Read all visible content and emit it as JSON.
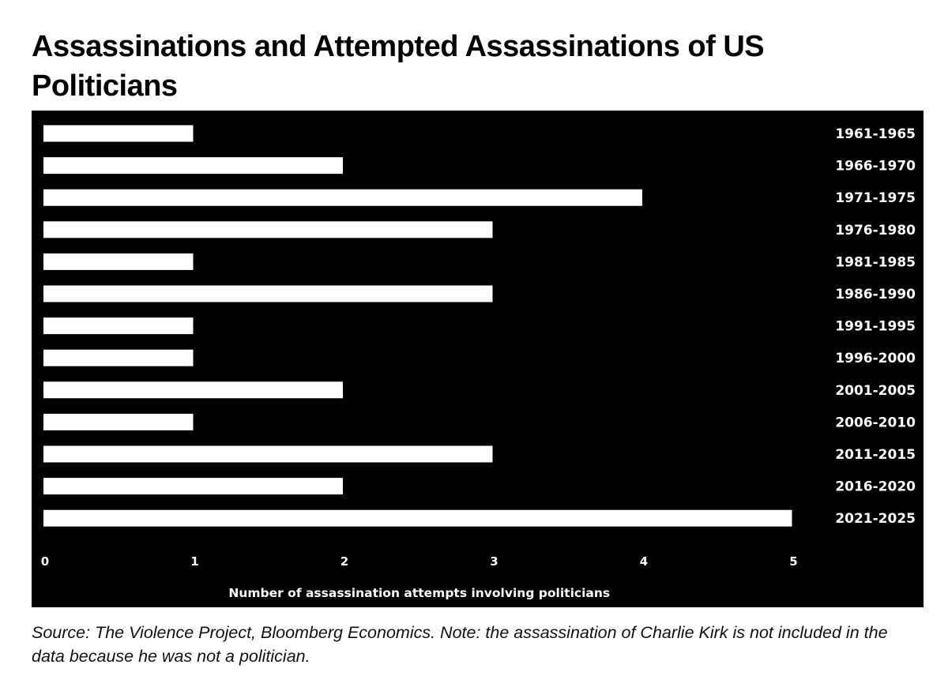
{
  "page": {
    "title": "Assassinations and Attempted Assassinations of US Politicians",
    "footnote": "Source: The Violence Project, Bloomberg Economics. Note: the assassination of Charlie Kirk is not included in the data because he was not a politician."
  },
  "chart_data": {
    "type": "bar",
    "orientation": "horizontal",
    "title": "Assassinations and Attempted Assassinations of US Politicians",
    "categories": [
      "1961-1965",
      "1966-1970",
      "1971-1975",
      "1976-1980",
      "1981-1985",
      "1986-1990",
      "1991-1995",
      "1996-2000",
      "2001-2005",
      "2006-2010",
      "2011-2015",
      "2016-2020",
      "2021-2025"
    ],
    "values": [
      1,
      2,
      4,
      3,
      1,
      3,
      1,
      1,
      2,
      1,
      3,
      2,
      5
    ],
    "xlabel": "Number of assassination attempts involving politicians",
    "ylabel": "",
    "xlim": [
      0,
      5
    ],
    "xticks": [
      0,
      1,
      2,
      3,
      4,
      5
    ],
    "grid": false,
    "legend": "none",
    "category_label_side": "right",
    "colors": {
      "background": "#000000",
      "bar": "#ffffff",
      "text": "#ffffff"
    }
  }
}
